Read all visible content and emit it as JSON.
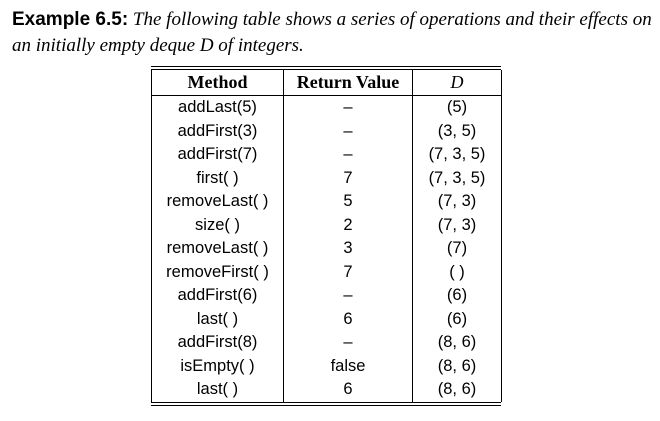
{
  "caption": {
    "label": "Example 6.5:",
    "text": "The following table shows a series of operations and their effects on an initially empty deque D of integers."
  },
  "table": {
    "headers": [
      "Method",
      "Return Value",
      "D"
    ],
    "rows": [
      [
        "addLast(5)",
        "–",
        "(5)"
      ],
      [
        "addFirst(3)",
        "–",
        "(3, 5)"
      ],
      [
        "addFirst(7)",
        "–",
        "(7, 3, 5)"
      ],
      [
        "first( )",
        "7",
        "(7, 3, 5)"
      ],
      [
        "removeLast( )",
        "5",
        "(7, 3)"
      ],
      [
        "size( )",
        "2",
        "(7, 3)"
      ],
      [
        "removeLast( )",
        "3",
        "(7)"
      ],
      [
        "removeFirst( )",
        "7",
        "( )"
      ],
      [
        "addFirst(6)",
        "–",
        "(6)"
      ],
      [
        "last( )",
        "6",
        "(6)"
      ],
      [
        "addFirst(8)",
        "–",
        "(8, 6)"
      ],
      [
        "isEmpty( )",
        "false",
        "(8, 6)"
      ],
      [
        "last( )",
        "6",
        "(8, 6)"
      ]
    ]
  }
}
